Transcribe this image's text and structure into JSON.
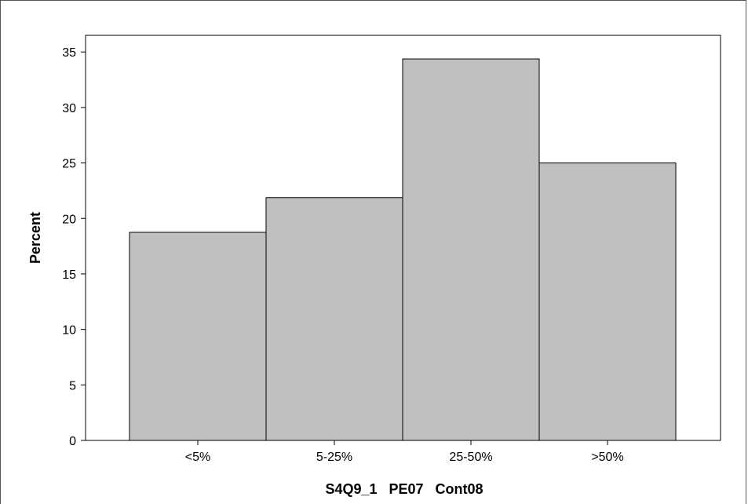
{
  "chart_data": {
    "type": "bar",
    "title": "",
    "xlabel": "S4Q9_1   PE07   Cont08",
    "ylabel": "Percent",
    "categories": [
      "<5%",
      "5-25%",
      "25-50%",
      ">50%"
    ],
    "values": [
      18.75,
      21.875,
      34.375,
      25.0
    ],
    "ylim": [
      0,
      36.5
    ],
    "yticks": [
      0,
      5,
      10,
      15,
      20,
      25,
      30,
      35
    ],
    "grid": false,
    "bar_color": "#c0c0c0",
    "bar_edge_color": "#000000"
  }
}
